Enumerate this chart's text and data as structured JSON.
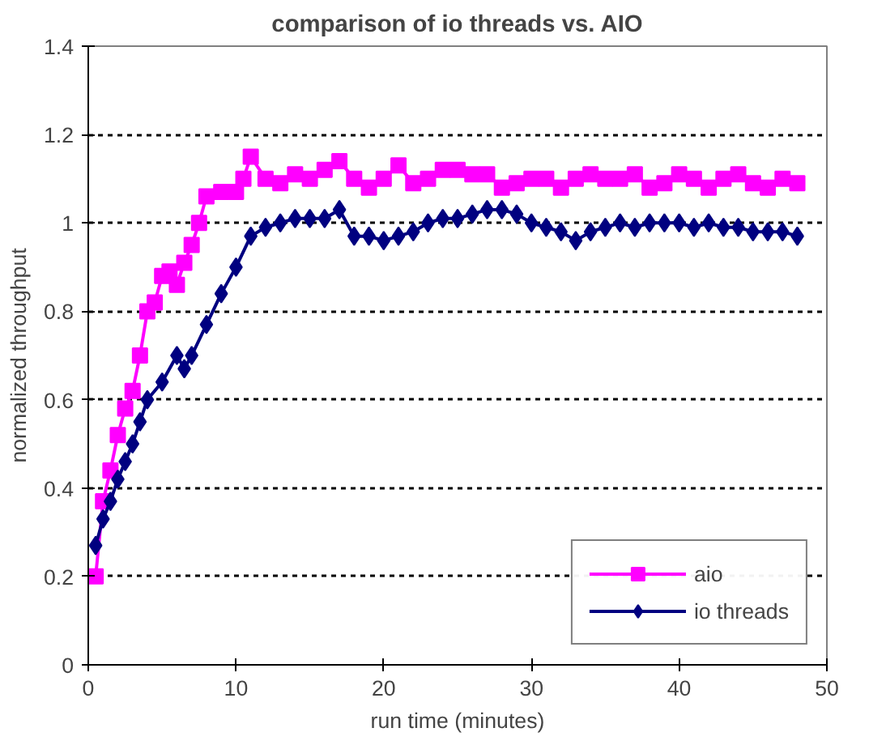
{
  "chart_data": {
    "type": "line",
    "title": "comparison of io threads vs. AIO",
    "xlabel": "run time (minutes)",
    "ylabel": "normalized throughput",
    "xlim": [
      0,
      50
    ],
    "xticks": [
      0,
      10,
      20,
      30,
      40,
      50
    ],
    "ylim": [
      0,
      1.4
    ],
    "yticks": [
      0,
      0.2,
      0.4,
      0.6,
      0.8,
      1,
      1.2,
      1.4
    ],
    "grid": "y",
    "legend": "bottom right",
    "series": [
      {
        "name": "aio",
        "color": "#ff00ff",
        "marker": "square",
        "x": [
          0.5,
          1,
          1.5,
          2,
          2.5,
          3,
          3.5,
          4,
          4.5,
          5,
          5.5,
          6,
          6.5,
          7,
          7.5,
          8,
          9,
          10,
          10.5,
          11,
          12,
          13,
          14,
          15,
          16,
          17,
          18,
          19,
          20,
          21,
          22,
          23,
          24,
          25,
          26,
          27,
          28,
          29,
          30,
          31,
          32,
          33,
          34,
          35,
          36,
          37,
          38,
          39,
          40,
          41,
          42,
          43,
          44,
          45,
          46,
          47,
          48
        ],
        "values": [
          0.2,
          0.37,
          0.44,
          0.52,
          0.58,
          0.62,
          0.7,
          0.8,
          0.82,
          0.88,
          0.89,
          0.86,
          0.91,
          0.95,
          1.0,
          1.06,
          1.07,
          1.07,
          1.1,
          1.15,
          1.1,
          1.09,
          1.11,
          1.1,
          1.12,
          1.14,
          1.1,
          1.08,
          1.1,
          1.13,
          1.09,
          1.1,
          1.12,
          1.12,
          1.11,
          1.11,
          1.08,
          1.09,
          1.1,
          1.1,
          1.08,
          1.1,
          1.11,
          1.1,
          1.1,
          1.11,
          1.08,
          1.09,
          1.11,
          1.1,
          1.08,
          1.1,
          1.11,
          1.09,
          1.08,
          1.1,
          1.09
        ]
      },
      {
        "name": "io threads",
        "color": "#000080",
        "marker": "diamond",
        "x": [
          0.5,
          1,
          1.5,
          2,
          2.5,
          3,
          3.5,
          4,
          5,
          6,
          6.5,
          7,
          8,
          9,
          10,
          11,
          12,
          13,
          14,
          15,
          16,
          17,
          18,
          19,
          20,
          21,
          22,
          23,
          24,
          25,
          26,
          27,
          28,
          29,
          30,
          31,
          32,
          33,
          34,
          35,
          36,
          37,
          38,
          39,
          40,
          41,
          42,
          43,
          44,
          45,
          46,
          47,
          48
        ],
        "values": [
          0.27,
          0.33,
          0.37,
          0.42,
          0.46,
          0.5,
          0.55,
          0.6,
          0.64,
          0.7,
          0.67,
          0.7,
          0.77,
          0.84,
          0.9,
          0.97,
          0.99,
          1.0,
          1.01,
          1.01,
          1.01,
          1.03,
          0.97,
          0.97,
          0.96,
          0.97,
          0.98,
          1.0,
          1.01,
          1.01,
          1.02,
          1.03,
          1.03,
          1.02,
          1.0,
          0.99,
          0.98,
          0.96,
          0.98,
          0.99,
          1.0,
          0.99,
          1.0,
          1.0,
          1.0,
          0.99,
          1.0,
          0.99,
          0.99,
          0.98,
          0.98,
          0.98,
          0.97
        ]
      }
    ]
  }
}
